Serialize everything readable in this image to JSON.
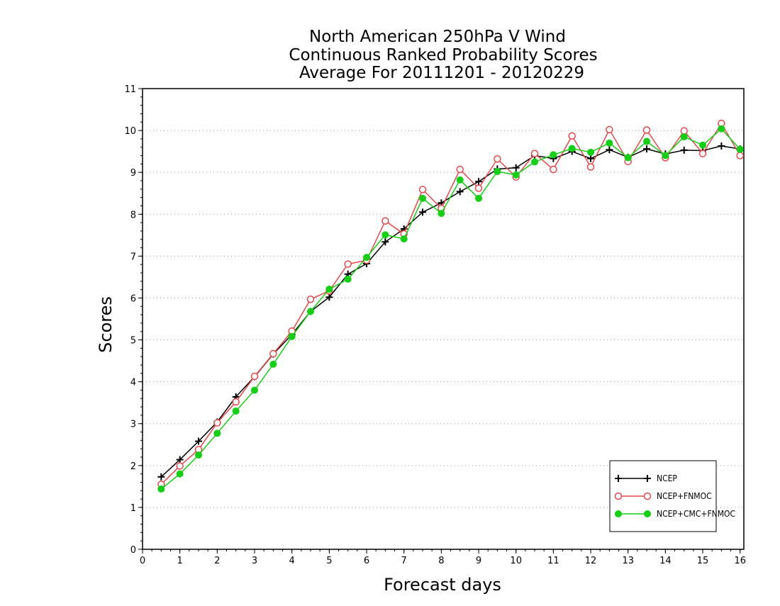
{
  "chart_data": {
    "type": "line",
    "title_lines": [
      "North American 250hPa V Wind",
      "Continuous Ranked Probability Scores",
      "Average For 20111201 - 20120229"
    ],
    "xlabel": "Forecast days",
    "ylabel": "Scores",
    "xlim": [
      0,
      16.1
    ],
    "ylim": [
      0,
      11
    ],
    "x_ticks": [
      0,
      1,
      2,
      3,
      4,
      5,
      6,
      7,
      8,
      9,
      10,
      11,
      12,
      13,
      14,
      15,
      16
    ],
    "y_ticks": [
      0,
      1,
      2,
      3,
      4,
      5,
      6,
      7,
      8,
      9,
      10,
      11
    ],
    "grid": "horizontal dotted",
    "legend_position": "bottom-right",
    "x": [
      0.5,
      1,
      1.5,
      2,
      2.5,
      3,
      3.5,
      4,
      4.5,
      5,
      5.5,
      6,
      6.5,
      7,
      7.5,
      8,
      8.5,
      9,
      9.5,
      10,
      10.5,
      11,
      11.5,
      12,
      12.5,
      13,
      13.5,
      14,
      14.5,
      15,
      15.5,
      16
    ],
    "series": [
      {
        "name": "NCEP",
        "color": "#000000",
        "marker": "plus",
        "values": [
          1.73,
          2.14,
          2.58,
          3.04,
          3.64,
          4.12,
          4.66,
          5.13,
          5.68,
          6.02,
          6.57,
          6.82,
          7.34,
          7.65,
          8.05,
          8.27,
          8.54,
          8.78,
          9.08,
          9.11,
          9.4,
          9.33,
          9.5,
          9.33,
          9.54,
          9.36,
          9.56,
          9.44,
          9.53,
          9.52,
          9.63,
          9.56
        ]
      },
      {
        "name": "NCEP+FNMOC",
        "color": "#e8474a",
        "marker": "open-circle",
        "values": [
          1.55,
          1.99,
          2.38,
          3.02,
          3.52,
          4.13,
          4.67,
          5.21,
          5.97,
          6.17,
          6.81,
          6.9,
          7.84,
          7.53,
          8.59,
          8.14,
          9.07,
          8.62,
          9.32,
          8.89,
          9.45,
          9.07,
          9.87,
          9.13,
          10.02,
          9.26,
          10.01,
          9.35,
          9.99,
          9.45,
          10.17,
          9.4
        ]
      },
      {
        "name": "NCEP+CMC+FNMOC",
        "color": "#12d012",
        "marker": "filled-circle",
        "values": [
          1.44,
          1.8,
          2.25,
          2.77,
          3.3,
          3.8,
          4.42,
          5.08,
          5.68,
          6.21,
          6.45,
          6.97,
          7.51,
          7.41,
          8.38,
          8.02,
          8.82,
          8.38,
          9.02,
          8.94,
          9.25,
          9.42,
          9.57,
          9.48,
          9.7,
          9.35,
          9.74,
          9.4,
          9.85,
          9.65,
          10.04,
          9.55
        ]
      }
    ]
  }
}
